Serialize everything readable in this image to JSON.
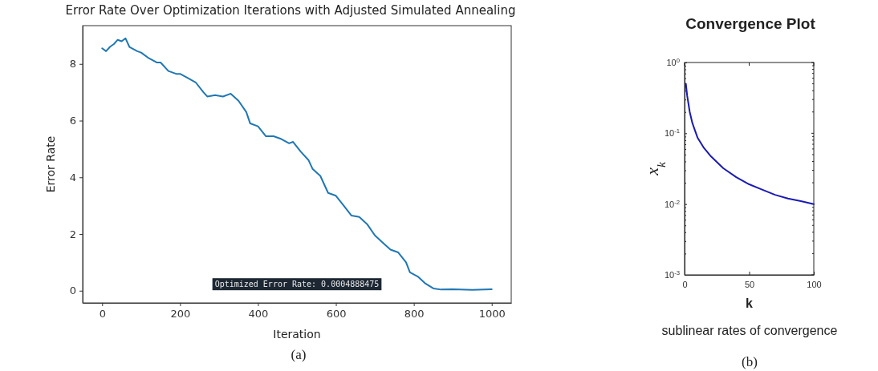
{
  "chart_data": [
    {
      "type": "line",
      "title": "Error Rate Over Optimization Iterations with Adjusted Simulated Annealing",
      "xlabel": "Iteration",
      "ylabel": "Error Rate",
      "x": [
        0,
        10,
        20,
        30,
        40,
        50,
        60,
        70,
        90,
        100,
        120,
        140,
        150,
        170,
        190,
        200,
        220,
        240,
        260,
        270,
        290,
        310,
        330,
        350,
        370,
        380,
        400,
        420,
        440,
        460,
        480,
        490,
        510,
        530,
        540,
        560,
        580,
        600,
        620,
        640,
        660,
        680,
        700,
        720,
        740,
        760,
        780,
        790,
        810,
        830,
        850,
        870,
        900,
        950,
        1000
      ],
      "series": [
        {
          "color": "#1f77b4",
          "values": [
            8.55,
            8.45,
            8.6,
            8.7,
            8.85,
            8.8,
            8.9,
            8.6,
            8.45,
            8.4,
            8.2,
            8.05,
            8.05,
            7.75,
            7.65,
            7.65,
            7.5,
            7.35,
            7.0,
            6.85,
            6.9,
            6.85,
            6.95,
            6.7,
            6.3,
            5.9,
            5.8,
            5.45,
            5.45,
            5.35,
            5.2,
            5.25,
            4.9,
            4.6,
            4.3,
            4.05,
            3.45,
            3.35,
            3.0,
            2.65,
            2.6,
            2.35,
            1.95,
            1.7,
            1.45,
            1.35,
            1.0,
            0.65,
            0.5,
            0.25,
            0.08,
            0.04,
            0.05,
            0.03,
            0.05
          ]
        }
      ],
      "xlim": [
        -50,
        1050
      ],
      "ylim": [
        -0.43,
        9.35
      ],
      "xticks": [
        0,
        200,
        400,
        600,
        800,
        1000
      ],
      "yticks": [
        0,
        2,
        4,
        6,
        8
      ],
      "grid": false,
      "marker": "none",
      "line_style": "solid",
      "annotations": [
        "Optimized Error Rate: 0.0004888475",
        "(a)"
      ]
    },
    {
      "type": "line",
      "title": "Convergence Plot",
      "xlabel": "k",
      "ylabel": "x$_{k}$",
      "x": [
        1,
        2,
        4,
        6,
        8,
        10,
        15,
        20,
        30,
        40,
        50,
        60,
        70,
        80,
        90,
        100
      ],
      "series": [
        {
          "color": "#1a1ab4",
          "values": [
            0.5,
            0.34,
            0.2,
            0.14,
            0.11,
            0.087,
            0.062,
            0.048,
            0.032,
            0.024,
            0.019,
            0.016,
            0.0135,
            0.012,
            0.011,
            0.01
          ]
        }
      ],
      "xlim": [
        0,
        100
      ],
      "ylim": [
        0.001,
        1
      ],
      "xticks": [
        0,
        50,
        100
      ],
      "yticks": [
        {
          "value": 0.001,
          "label": "10$^{-3}$"
        },
        {
          "value": 0.002,
          "label": null
        },
        {
          "value": 0.003,
          "label": null
        },
        {
          "value": 0.004,
          "label": null
        },
        {
          "value": 0.005,
          "label": null
        },
        {
          "value": 0.006,
          "label": null
        },
        {
          "value": 0.007,
          "label": null
        },
        {
          "value": 0.008,
          "label": null
        },
        {
          "value": 0.009,
          "label": null
        },
        {
          "value": 0.01,
          "label": "10$^{-2}$"
        },
        {
          "value": 0.02,
          "label": null
        },
        {
          "value": 0.03,
          "label": null
        },
        {
          "value": 0.04,
          "label": null
        },
        {
          "value": 0.05,
          "label": null
        },
        {
          "value": 0.06,
          "label": null
        },
        {
          "value": 0.07,
          "label": null
        },
        {
          "value": 0.08,
          "label": null
        },
        {
          "value": 0.09,
          "label": null
        },
        {
          "value": 0.1,
          "label": "10$^{-1}$"
        },
        {
          "value": 0.2,
          "label": null
        },
        {
          "value": 0.3,
          "label": null
        },
        {
          "value": 0.4,
          "label": null
        },
        {
          "value": 0.5,
          "label": null
        },
        {
          "value": 0.6,
          "label": null
        },
        {
          "value": 0.7,
          "label": null
        },
        {
          "value": 0.8,
          "label": null
        },
        {
          "value": 0.9,
          "label": null
        },
        {
          "value": 1,
          "label": "10$^{0}$"
        }
      ],
      "log": "y",
      "grid": false,
      "marker": "none",
      "line_style": "solid",
      "annotations": [
        "sublinear rates of convergence",
        "(b)"
      ]
    }
  ]
}
